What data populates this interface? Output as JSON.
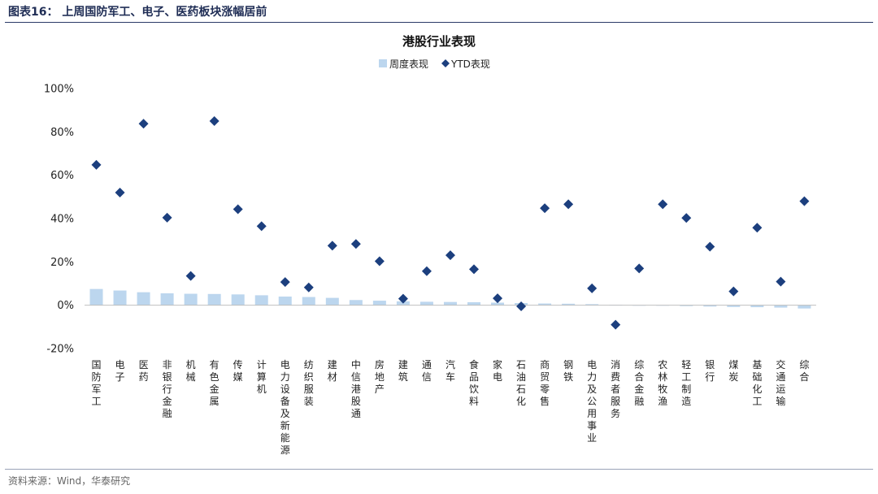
{
  "header": {
    "title": "图表16：  上周国防军工、电子、医药板块涨幅居前"
  },
  "footer": {
    "source": "资料来源：Wind，华泰研究"
  },
  "colors": {
    "bar": "#bcd6ee",
    "diamond": "#1c3f7e",
    "axis": "#bfbfbf",
    "header": "#1f2d55"
  },
  "chart_data": {
    "type": "bar",
    "title": "港股行业表现",
    "ylim": [
      -0.2,
      1.0
    ],
    "yticks": [
      -0.2,
      0.0,
      0.2,
      0.4,
      0.6,
      0.8,
      1.0
    ],
    "ytick_labels": [
      "-20%",
      "0%",
      "20%",
      "40%",
      "60%",
      "80%",
      "100%"
    ],
    "legend_position": "top-center",
    "grid": false,
    "categories": [
      "国防军工",
      "电子",
      "医药",
      "非银行金融",
      "机械",
      "有色金属",
      "传媒",
      "计算机",
      "电力设备及新能源",
      "纺织服装",
      "建材",
      "中信港股通",
      "房地产",
      "建筑",
      "通信",
      "汽车",
      "食品饮料",
      "家电",
      "石油石化",
      "商贸零售",
      "钢铁",
      "电力及公用事业",
      "消费者服务",
      "综合金融",
      "农林牧渔",
      "轻工制造",
      "银行",
      "煤炭",
      "基础化工",
      "交通运输",
      "综合"
    ],
    "series": [
      {
        "name": "周度表现",
        "type": "bar",
        "values": [
          0.075,
          0.068,
          0.06,
          0.055,
          0.053,
          0.052,
          0.05,
          0.046,
          0.04,
          0.038,
          0.034,
          0.024,
          0.021,
          0.018,
          0.016,
          0.015,
          0.014,
          0.012,
          0.01,
          0.008,
          0.007,
          0.005,
          0.002,
          0.0,
          -0.002,
          -0.004,
          -0.006,
          -0.008,
          -0.009,
          -0.011,
          -0.015
        ]
      },
      {
        "name": "YTD表现",
        "type": "scatter",
        "values": [
          0.648,
          0.52,
          0.838,
          0.404,
          0.135,
          0.85,
          0.443,
          0.365,
          0.107,
          0.082,
          0.275,
          0.283,
          0.203,
          0.03,
          0.157,
          0.231,
          0.166,
          0.032,
          -0.005,
          0.448,
          0.466,
          0.078,
          -0.09,
          0.17,
          0.466,
          0.403,
          0.27,
          0.064,
          0.358,
          0.109,
          0.48
        ]
      }
    ]
  }
}
